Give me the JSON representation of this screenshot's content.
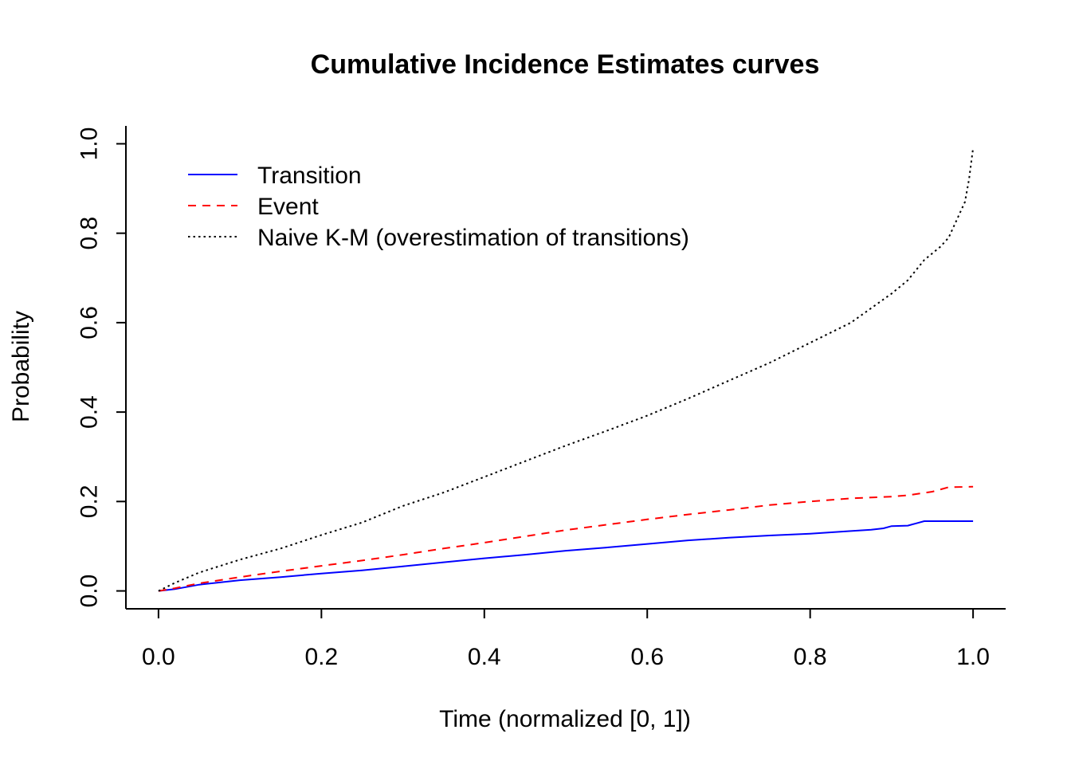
{
  "chart_data": {
    "type": "line",
    "title": "Cumulative Incidence Estimates curves",
    "xlabel": "Time (normalized [0, 1])",
    "ylabel": "Probability",
    "xlim": [
      -0.04,
      1.04
    ],
    "ylim": [
      -0.04,
      1.04
    ],
    "xticks": [
      0.0,
      0.2,
      0.4,
      0.6,
      0.8,
      1.0
    ],
    "yticks": [
      0.0,
      0.2,
      0.4,
      0.6,
      0.8,
      1.0
    ],
    "xtick_labels": [
      "0.0",
      "0.2",
      "0.4",
      "0.6",
      "0.8",
      "1.0"
    ],
    "ytick_labels": [
      "0.0",
      "0.2",
      "0.4",
      "0.6",
      "0.8",
      "1.0"
    ],
    "grid": false,
    "legend_position": "top-left",
    "series": [
      {
        "name": "Transition",
        "color": "#0000FF",
        "style": "solid",
        "x": [
          0,
          0.02,
          0.05,
          0.1,
          0.15,
          0.2,
          0.25,
          0.3,
          0.35,
          0.4,
          0.45,
          0.5,
          0.55,
          0.6,
          0.65,
          0.7,
          0.75,
          0.8,
          0.85,
          0.875,
          0.89,
          0.9,
          0.92,
          0.93,
          0.94,
          0.96,
          0.98,
          1.0
        ],
        "y": [
          0,
          0.004,
          0.014,
          0.024,
          0.031,
          0.039,
          0.046,
          0.055,
          0.064,
          0.073,
          0.081,
          0.09,
          0.097,
          0.105,
          0.113,
          0.119,
          0.124,
          0.128,
          0.134,
          0.137,
          0.14,
          0.145,
          0.146,
          0.151,
          0.156,
          0.156,
          0.156,
          0.156
        ]
      },
      {
        "name": "Event",
        "color": "#FF0000",
        "style": "dashed",
        "x": [
          0,
          0.02,
          0.05,
          0.1,
          0.15,
          0.2,
          0.25,
          0.3,
          0.35,
          0.4,
          0.45,
          0.5,
          0.55,
          0.6,
          0.65,
          0.7,
          0.75,
          0.8,
          0.85,
          0.9,
          0.92,
          0.95,
          0.97,
          1.0
        ],
        "y": [
          0,
          0.006,
          0.017,
          0.031,
          0.044,
          0.056,
          0.068,
          0.081,
          0.095,
          0.108,
          0.122,
          0.136,
          0.148,
          0.16,
          0.171,
          0.181,
          0.192,
          0.2,
          0.207,
          0.211,
          0.214,
          0.222,
          0.232,
          0.233
        ]
      },
      {
        "name": "Naive K-M (overestimation of transitions)",
        "color": "#000000",
        "style": "dotted",
        "x": [
          0,
          0.02,
          0.05,
          0.1,
          0.15,
          0.2,
          0.25,
          0.3,
          0.35,
          0.4,
          0.45,
          0.5,
          0.55,
          0.6,
          0.65,
          0.7,
          0.75,
          0.8,
          0.85,
          0.9,
          0.92,
          0.94,
          0.96,
          0.97,
          0.98,
          0.99,
          0.995,
          1.0
        ],
        "y": [
          0,
          0.018,
          0.041,
          0.07,
          0.095,
          0.125,
          0.153,
          0.19,
          0.22,
          0.255,
          0.29,
          0.325,
          0.358,
          0.392,
          0.43,
          0.47,
          0.51,
          0.555,
          0.6,
          0.665,
          0.695,
          0.74,
          0.77,
          0.79,
          0.83,
          0.87,
          0.92,
          0.99
        ]
      }
    ]
  }
}
